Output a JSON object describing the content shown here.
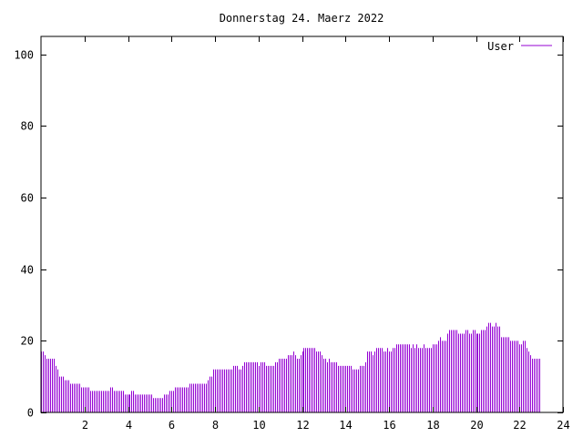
{
  "chart_data": {
    "type": "bar",
    "title": "Donnerstag 24. Maerz 2022",
    "xlabel": "",
    "ylabel": "",
    "xlim": [
      0,
      24
    ],
    "ylim": [
      0,
      105
    ],
    "x_ticks": [
      2,
      4,
      6,
      8,
      10,
      12,
      14,
      16,
      18,
      20,
      22,
      24
    ],
    "y_ticks": [
      0,
      20,
      40,
      60,
      80,
      100
    ],
    "grid": false,
    "legend_position": "top-right",
    "bar_color": "#9400d3",
    "series": [
      {
        "name": "User",
        "interval_minutes": 5,
        "values": [
          17,
          17,
          16,
          15,
          15,
          15,
          15,
          15,
          13,
          12,
          10,
          10,
          10,
          9,
          9,
          9,
          8,
          8,
          8,
          8,
          8,
          8,
          7,
          7,
          7,
          7,
          7,
          6,
          6,
          6,
          6,
          6,
          6,
          6,
          6,
          6,
          6,
          6,
          7,
          7,
          6,
          6,
          6,
          6,
          6,
          6,
          5,
          5,
          5,
          5,
          6,
          6,
          5,
          5,
          5,
          5,
          5,
          5,
          5,
          5,
          5,
          5,
          4,
          4,
          4,
          4,
          4,
          4,
          5,
          5,
          5,
          6,
          6,
          6,
          7,
          7,
          7,
          7,
          7,
          7,
          7,
          7,
          8,
          8,
          8,
          8,
          8,
          8,
          8,
          8,
          8,
          8,
          9,
          10,
          10,
          12,
          12,
          12,
          12,
          12,
          12,
          12,
          12,
          12,
          12,
          12,
          13,
          13,
          13,
          12,
          12,
          13,
          14,
          14,
          14,
          14,
          14,
          14,
          14,
          14,
          13,
          14,
          14,
          14,
          13,
          13,
          13,
          13,
          13,
          14,
          14,
          15,
          15,
          15,
          15,
          15,
          16,
          16,
          16,
          17,
          16,
          15,
          15,
          16,
          17,
          18,
          18,
          18,
          18,
          18,
          18,
          18,
          17,
          17,
          17,
          16,
          15,
          15,
          14,
          15,
          14,
          14,
          14,
          14,
          13,
          13,
          13,
          13,
          13,
          13,
          13,
          13,
          12,
          12,
          12,
          12,
          13,
          13,
          13,
          14,
          17,
          17,
          17,
          16,
          17,
          18,
          18,
          18,
          18,
          17,
          17,
          18,
          17,
          17,
          18,
          18,
          19,
          19,
          19,
          19,
          19,
          19,
          19,
          19,
          18,
          19,
          18,
          19,
          18,
          18,
          18,
          19,
          18,
          18,
          18,
          18,
          19,
          19,
          19,
          20,
          21,
          20,
          20,
          20,
          22,
          23,
          23,
          23,
          23,
          23,
          22,
          22,
          22,
          22,
          23,
          23,
          22,
          22,
          23,
          23,
          22,
          22,
          22,
          23,
          23,
          23,
          24,
          25,
          25,
          24,
          24,
          25,
          24,
          24,
          21,
          21,
          21,
          21,
          21,
          20,
          20,
          20,
          20,
          20,
          19,
          19,
          20,
          20,
          18,
          17,
          16,
          15,
          15,
          15,
          15,
          15
        ]
      }
    ]
  }
}
